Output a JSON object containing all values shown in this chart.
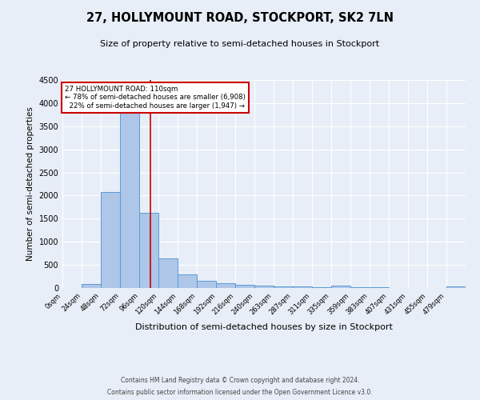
{
  "title": "27, HOLLYMOUNT ROAD, STOCKPORT, SK2 7LN",
  "subtitle": "Size of property relative to semi-detached houses in Stockport",
  "xlabel": "Distribution of semi-detached houses by size in Stockport",
  "ylabel": "Number of semi-detached properties",
  "footer1": "Contains HM Land Registry data © Crown copyright and database right 2024.",
  "footer2": "Contains public sector information licensed under the Open Government Licence v3.0.",
  "property_label": "27 HOLLYMOUNT ROAD: 110sqm",
  "pct_smaller": 78,
  "n_smaller": 6908,
  "pct_larger": 22,
  "n_larger": 1947,
  "bar_edges": [
    0,
    24,
    48,
    72,
    96,
    120,
    144,
    168,
    192,
    216,
    240,
    263,
    287,
    311,
    335,
    359,
    383,
    407,
    431,
    455,
    479,
    503
  ],
  "bar_heights": [
    0,
    80,
    2080,
    3800,
    1630,
    640,
    290,
    155,
    110,
    75,
    55,
    40,
    30,
    15,
    50,
    25,
    20,
    0,
    0,
    0,
    30
  ],
  "bar_color": "#AEC6E8",
  "bar_edge_color": "#5B9BD5",
  "vline_color": "#CC0000",
  "vline_x": 110,
  "ylim": [
    0,
    4500
  ],
  "xlim": [
    0,
    503
  ],
  "bg_color": "#E8EEF7",
  "plot_bg_color": "#E8EEF7",
  "grid_color": "#FFFFFF",
  "annotation_box_edge": "#CC0000",
  "tick_labels": [
    "0sqm",
    "24sqm",
    "48sqm",
    "72sqm",
    "96sqm",
    "120sqm",
    "144sqm",
    "168sqm",
    "192sqm",
    "216sqm",
    "240sqm",
    "263sqm",
    "287sqm",
    "311sqm",
    "335sqm",
    "359sqm",
    "383sqm",
    "407sqm",
    "431sqm",
    "455sqm",
    "479sqm"
  ]
}
